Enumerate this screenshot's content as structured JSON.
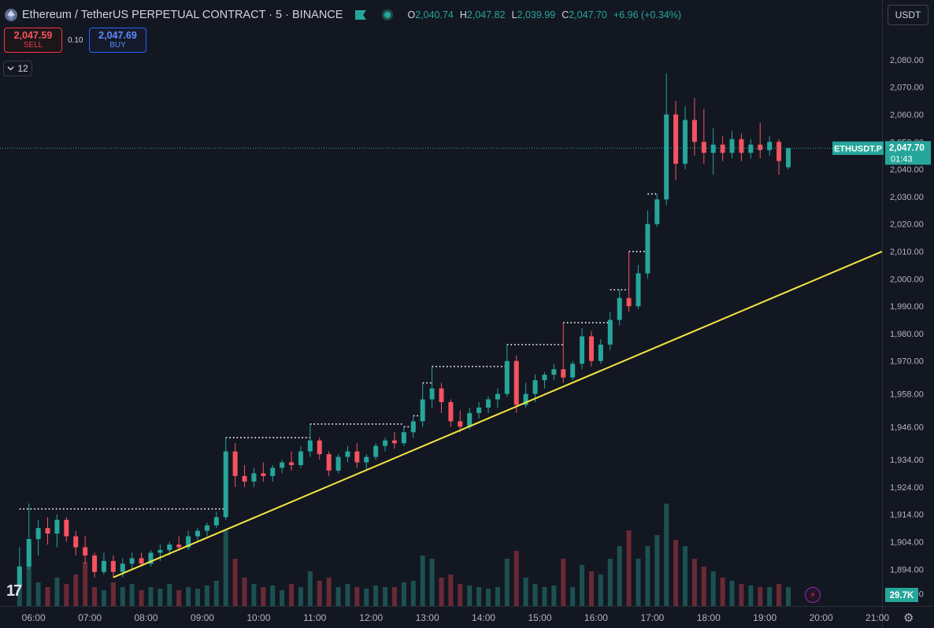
{
  "header": {
    "symbol_title": "Ethereum / TetherUS PERPETUAL CONTRACT · 5 · BINANCE",
    "logo_icon": "ethereum-logo-icon",
    "flag_icon": "green-flag-icon",
    "status_icon": "market-open-dot-icon",
    "open_key": "O",
    "open": "2,040.74",
    "high_key": "H",
    "high": "2,047.82",
    "low_key": "L",
    "low": "2,039.99",
    "close_key": "C",
    "close": "2,047.70",
    "change": "+6.96 (+0.34%)"
  },
  "trade": {
    "sell_price": "2,047.59",
    "sell_label": "SELL",
    "spread": "0.10",
    "buy_price": "2,047.69",
    "buy_label": "BUY"
  },
  "indicators": {
    "count": "12",
    "toggle_icon": "chevron-down-icon"
  },
  "currency": "USDT",
  "price_label": {
    "symbol": "ETHUSDT.P",
    "price": "2,047.70",
    "countdown": "01:43"
  },
  "volume_label": "29.7K",
  "colors": {
    "background": "#131722",
    "up": "#26a69a",
    "down": "#f7525f",
    "trendline": "#f5e642",
    "axis_text": "#b2b5be"
  },
  "chart_data": {
    "type": "candlestick",
    "y_ticks": [
      "2,080.00",
      "2,070.00",
      "2,060.00",
      "2,050.00",
      "2,040.00",
      "2,030.00",
      "2,020.00",
      "2,010.00",
      "2,000.00",
      "1,990.00",
      "1,980.00",
      "1,970.00",
      "1,958.00",
      "1,946.00",
      "1,934.00",
      "1,924.00",
      "1,914.00",
      "1,904.00",
      "1,894.00",
      "1,885.00"
    ],
    "x_ticks": [
      "06:00",
      "07:00",
      "08:00",
      "09:00",
      "10:00",
      "11:00",
      "12:00",
      "13:00",
      "14:00",
      "15:00",
      "16:00",
      "17:00",
      "18:00",
      "19:00",
      "20:00",
      "21:00"
    ],
    "ylim": [
      1880,
      2086
    ],
    "x_range": [
      "05:25",
      "21:05"
    ],
    "candles": [
      {
        "t": "05:45",
        "o": 1888,
        "h": 1902,
        "l": 1886,
        "c": 1895
      },
      {
        "t": "05:55",
        "o": 1895,
        "h": 1918,
        "l": 1894,
        "c": 1905
      },
      {
        "t": "06:05",
        "o": 1905,
        "h": 1912,
        "l": 1899,
        "c": 1909
      },
      {
        "t": "06:15",
        "o": 1909,
        "h": 1913,
        "l": 1903,
        "c": 1907
      },
      {
        "t": "06:25",
        "o": 1907,
        "h": 1914,
        "l": 1902,
        "c": 1912
      },
      {
        "t": "06:35",
        "o": 1912,
        "h": 1913,
        "l": 1904,
        "c": 1906
      },
      {
        "t": "06:45",
        "o": 1906,
        "h": 1908,
        "l": 1899,
        "c": 1902
      },
      {
        "t": "06:55",
        "o": 1902,
        "h": 1906,
        "l": 1896,
        "c": 1899
      },
      {
        "t": "07:05",
        "o": 1899,
        "h": 1900,
        "l": 1891,
        "c": 1893
      },
      {
        "t": "07:15",
        "o": 1893,
        "h": 1900,
        "l": 1892,
        "c": 1897
      },
      {
        "t": "07:25",
        "o": 1897,
        "h": 1899,
        "l": 1891,
        "c": 1893
      },
      {
        "t": "07:35",
        "o": 1893,
        "h": 1898,
        "l": 1891,
        "c": 1896
      },
      {
        "t": "07:45",
        "o": 1896,
        "h": 1900,
        "l": 1894,
        "c": 1898
      },
      {
        "t": "07:55",
        "o": 1898,
        "h": 1900,
        "l": 1895,
        "c": 1896
      },
      {
        "t": "08:05",
        "o": 1896,
        "h": 1901,
        "l": 1895,
        "c": 1900
      },
      {
        "t": "08:15",
        "o": 1900,
        "h": 1903,
        "l": 1897,
        "c": 1901
      },
      {
        "t": "08:25",
        "o": 1901,
        "h": 1904,
        "l": 1899,
        "c": 1903
      },
      {
        "t": "08:35",
        "o": 1903,
        "h": 1906,
        "l": 1901,
        "c": 1902
      },
      {
        "t": "08:45",
        "o": 1902,
        "h": 1908,
        "l": 1901,
        "c": 1906
      },
      {
        "t": "08:55",
        "o": 1906,
        "h": 1909,
        "l": 1904,
        "c": 1908
      },
      {
        "t": "09:05",
        "o": 1908,
        "h": 1911,
        "l": 1906,
        "c": 1910
      },
      {
        "t": "09:15",
        "o": 1910,
        "h": 1915,
        "l": 1909,
        "c": 1913
      },
      {
        "t": "09:25",
        "o": 1913,
        "h": 1942,
        "l": 1912,
        "c": 1937
      },
      {
        "t": "09:35",
        "o": 1937,
        "h": 1940,
        "l": 1924,
        "c": 1928
      },
      {
        "t": "09:45",
        "o": 1928,
        "h": 1932,
        "l": 1924,
        "c": 1926
      },
      {
        "t": "09:55",
        "o": 1926,
        "h": 1931,
        "l": 1924,
        "c": 1929
      },
      {
        "t": "10:05",
        "o": 1929,
        "h": 1933,
        "l": 1926,
        "c": 1928
      },
      {
        "t": "10:15",
        "o": 1928,
        "h": 1932,
        "l": 1926,
        "c": 1931
      },
      {
        "t": "10:25",
        "o": 1931,
        "h": 1934,
        "l": 1929,
        "c": 1933
      },
      {
        "t": "10:35",
        "o": 1933,
        "h": 1937,
        "l": 1930,
        "c": 1932
      },
      {
        "t": "10:45",
        "o": 1932,
        "h": 1939,
        "l": 1931,
        "c": 1937
      },
      {
        "t": "10:55",
        "o": 1937,
        "h": 1947,
        "l": 1935,
        "c": 1941
      },
      {
        "t": "11:05",
        "o": 1941,
        "h": 1942,
        "l": 1934,
        "c": 1936
      },
      {
        "t": "11:15",
        "o": 1936,
        "h": 1937,
        "l": 1928,
        "c": 1930
      },
      {
        "t": "11:25",
        "o": 1930,
        "h": 1936,
        "l": 1929,
        "c": 1935
      },
      {
        "t": "11:35",
        "o": 1935,
        "h": 1939,
        "l": 1933,
        "c": 1937
      },
      {
        "t": "11:45",
        "o": 1937,
        "h": 1940,
        "l": 1931,
        "c": 1933
      },
      {
        "t": "11:55",
        "o": 1933,
        "h": 1936,
        "l": 1930,
        "c": 1935
      },
      {
        "t": "12:05",
        "o": 1935,
        "h": 1940,
        "l": 1934,
        "c": 1939
      },
      {
        "t": "12:15",
        "o": 1939,
        "h": 1942,
        "l": 1937,
        "c": 1941
      },
      {
        "t": "12:25",
        "o": 1941,
        "h": 1944,
        "l": 1938,
        "c": 1940
      },
      {
        "t": "12:35",
        "o": 1940,
        "h": 1946,
        "l": 1939,
        "c": 1944
      },
      {
        "t": "12:45",
        "o": 1944,
        "h": 1950,
        "l": 1942,
        "c": 1948
      },
      {
        "t": "12:55",
        "o": 1948,
        "h": 1962,
        "l": 1946,
        "c": 1956
      },
      {
        "t": "13:05",
        "o": 1956,
        "h": 1968,
        "l": 1953,
        "c": 1960
      },
      {
        "t": "13:15",
        "o": 1960,
        "h": 1962,
        "l": 1951,
        "c": 1955
      },
      {
        "t": "13:25",
        "o": 1955,
        "h": 1956,
        "l": 1946,
        "c": 1948
      },
      {
        "t": "13:35",
        "o": 1948,
        "h": 1952,
        "l": 1944,
        "c": 1946
      },
      {
        "t": "13:45",
        "o": 1946,
        "h": 1953,
        "l": 1945,
        "c": 1951
      },
      {
        "t": "13:55",
        "o": 1951,
        "h": 1955,
        "l": 1949,
        "c": 1953
      },
      {
        "t": "14:05",
        "o": 1953,
        "h": 1957,
        "l": 1951,
        "c": 1956
      },
      {
        "t": "14:15",
        "o": 1956,
        "h": 1960,
        "l": 1953,
        "c": 1958
      },
      {
        "t": "14:25",
        "o": 1958,
        "h": 1976,
        "l": 1957,
        "c": 1970
      },
      {
        "t": "14:35",
        "o": 1970,
        "h": 1972,
        "l": 1951,
        "c": 1954
      },
      {
        "t": "14:45",
        "o": 1954,
        "h": 1962,
        "l": 1953,
        "c": 1958
      },
      {
        "t": "14:55",
        "o": 1958,
        "h": 1965,
        "l": 1955,
        "c": 1963
      },
      {
        "t": "15:05",
        "o": 1963,
        "h": 1966,
        "l": 1960,
        "c": 1965
      },
      {
        "t": "15:15",
        "o": 1965,
        "h": 1969,
        "l": 1963,
        "c": 1967
      },
      {
        "t": "15:25",
        "o": 1967,
        "h": 1984,
        "l": 1962,
        "c": 1964
      },
      {
        "t": "15:35",
        "o": 1964,
        "h": 1970,
        "l": 1963,
        "c": 1969
      },
      {
        "t": "15:45",
        "o": 1969,
        "h": 1982,
        "l": 1967,
        "c": 1979
      },
      {
        "t": "15:55",
        "o": 1979,
        "h": 1981,
        "l": 1968,
        "c": 1970
      },
      {
        "t": "16:05",
        "o": 1970,
        "h": 1978,
        "l": 1969,
        "c": 1976
      },
      {
        "t": "16:15",
        "o": 1976,
        "h": 1988,
        "l": 1974,
        "c": 1985
      },
      {
        "t": "16:25",
        "o": 1985,
        "h": 1996,
        "l": 1983,
        "c": 1993
      },
      {
        "t": "16:35",
        "o": 1993,
        "h": 2010,
        "l": 1988,
        "c": 1990
      },
      {
        "t": "16:45",
        "o": 1990,
        "h": 2005,
        "l": 1989,
        "c": 2002
      },
      {
        "t": "16:55",
        "o": 2002,
        "h": 2025,
        "l": 2000,
        "c": 2020
      },
      {
        "t": "17:05",
        "o": 2020,
        "h": 2031,
        "l": 2019,
        "c": 2029
      },
      {
        "t": "17:15",
        "o": 2029,
        "h": 2075,
        "l": 2027,
        "c": 2060
      },
      {
        "t": "17:25",
        "o": 2060,
        "h": 2065,
        "l": 2036,
        "c": 2042
      },
      {
        "t": "17:35",
        "o": 2042,
        "h": 2063,
        "l": 2040,
        "c": 2058
      },
      {
        "t": "17:45",
        "o": 2058,
        "h": 2066,
        "l": 2045,
        "c": 2050
      },
      {
        "t": "17:55",
        "o": 2050,
        "h": 2062,
        "l": 2042,
        "c": 2046
      },
      {
        "t": "18:05",
        "o": 2046,
        "h": 2055,
        "l": 2038,
        "c": 2049
      },
      {
        "t": "18:15",
        "o": 2049,
        "h": 2052,
        "l": 2043,
        "c": 2046
      },
      {
        "t": "18:25",
        "o": 2046,
        "h": 2054,
        "l": 2044,
        "c": 2051
      },
      {
        "t": "18:35",
        "o": 2051,
        "h": 2053,
        "l": 2043,
        "c": 2046
      },
      {
        "t": "18:45",
        "o": 2046,
        "h": 2051,
        "l": 2044,
        "c": 2049
      },
      {
        "t": "18:55",
        "o": 2049,
        "h": 2057,
        "l": 2044,
        "c": 2047
      },
      {
        "t": "19:05",
        "o": 2047,
        "h": 2052,
        "l": 2045,
        "c": 2050
      },
      {
        "t": "19:15",
        "o": 2050,
        "h": 2051,
        "l": 2038,
        "c": 2043
      },
      {
        "t": "19:25",
        "o": 2040.74,
        "h": 2047.82,
        "l": 2039.99,
        "c": 2047.7
      }
    ],
    "volume_max": 29700,
    "volume_levels": [
      0.22,
      0.35,
      0.15,
      0.12,
      0.18,
      0.14,
      0.2,
      0.28,
      0.12,
      0.1,
      0.15,
      0.12,
      0.14,
      0.1,
      0.12,
      0.11,
      0.14,
      0.1,
      0.12,
      0.11,
      0.13,
      0.16,
      0.48,
      0.3,
      0.18,
      0.14,
      0.12,
      0.13,
      0.1,
      0.14,
      0.12,
      0.22,
      0.16,
      0.18,
      0.12,
      0.14,
      0.12,
      0.11,
      0.13,
      0.12,
      0.12,
      0.15,
      0.16,
      0.32,
      0.3,
      0.18,
      0.2,
      0.14,
      0.13,
      0.12,
      0.11,
      0.12,
      0.3,
      0.35,
      0.18,
      0.14,
      0.12,
      0.13,
      0.3,
      0.12,
      0.26,
      0.22,
      0.2,
      0.3,
      0.38,
      0.48,
      0.3,
      0.38,
      0.45,
      0.65,
      0.42,
      0.38,
      0.3,
      0.25,
      0.22,
      0.18,
      0.16,
      0.14,
      0.13,
      0.12,
      0.12,
      0.14,
      0.12
    ],
    "trendline": {
      "from": {
        "t": "07:25",
        "price": 1891
      },
      "to": {
        "t": "21:05",
        "price": 2010
      }
    },
    "breakout_levels": [
      {
        "price": 1916,
        "from": "05:45",
        "to": "09:25"
      },
      {
        "price": 1942,
        "from": "09:25",
        "to": "10:55"
      },
      {
        "price": 1947,
        "from": "10:55",
        "to": "12:35"
      },
      {
        "price": 1946,
        "from": "12:35",
        "to": "12:45"
      },
      {
        "price": 1950,
        "from": "12:45",
        "to": "12:55"
      },
      {
        "price": 1962,
        "from": "12:55",
        "to": "13:05"
      },
      {
        "price": 1968,
        "from": "13:05",
        "to": "14:25"
      },
      {
        "price": 1976,
        "from": "14:25",
        "to": "15:25"
      },
      {
        "price": 1984,
        "from": "15:25",
        "to": "16:15"
      },
      {
        "price": 1996,
        "from": "16:15",
        "to": "16:35"
      },
      {
        "price": 2010,
        "from": "16:35",
        "to": "16:55"
      },
      {
        "price": 2031,
        "from": "16:55",
        "to": "17:05"
      }
    ],
    "current_price": 2047.7
  }
}
